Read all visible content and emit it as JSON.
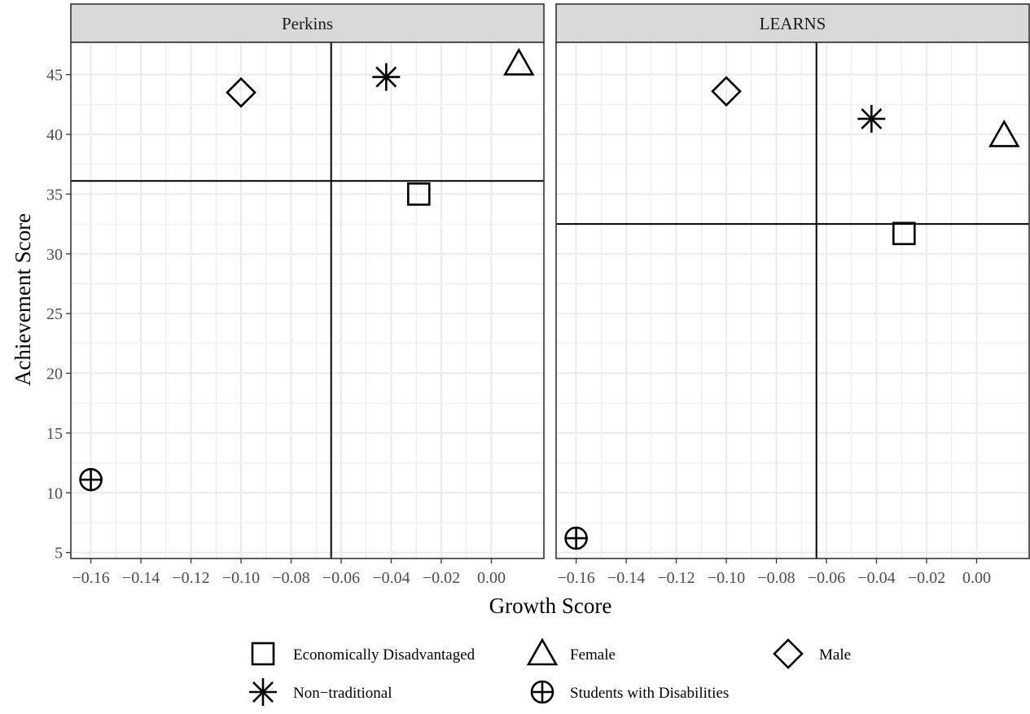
{
  "chart_data": {
    "type": "scatter",
    "facets": [
      {
        "name": "Perkins",
        "vline": -0.064,
        "hline": 36.1,
        "points": [
          {
            "group": "Economically Disadvantaged",
            "x": -0.029,
            "y": 35.0
          },
          {
            "group": "Female",
            "x": 0.011,
            "y": 45.9
          },
          {
            "group": "Male",
            "x": -0.1,
            "y": 43.5
          },
          {
            "group": "Non−traditional",
            "x": -0.042,
            "y": 44.8
          },
          {
            "group": "Students with Disabilities",
            "x": -0.16,
            "y": 11.1
          }
        ]
      },
      {
        "name": "LEARNS",
        "vline": -0.064,
        "hline": 32.5,
        "points": [
          {
            "group": "Economically Disadvantaged",
            "x": -0.029,
            "y": 31.7
          },
          {
            "group": "Female",
            "x": 0.011,
            "y": 39.9
          },
          {
            "group": "Male",
            "x": -0.1,
            "y": 43.6
          },
          {
            "group": "Non−traditional",
            "x": -0.042,
            "y": 41.3
          },
          {
            "group": "Students with Disabilities",
            "x": -0.16,
            "y": 6.2
          }
        ]
      }
    ],
    "xlabel": "Growth Score",
    "ylabel": "Achievement Score",
    "xlim": [
      -0.168,
      0.021
    ],
    "ylim": [
      4.5,
      47.7
    ],
    "xticks": [
      -0.16,
      -0.14,
      -0.12,
      -0.1,
      -0.08,
      -0.06,
      -0.04,
      -0.02,
      0.0
    ],
    "xtick_labels": [
      "−0.16",
      "−0.14",
      "−0.12",
      "−0.10",
      "−0.08",
      "−0.06",
      "−0.04",
      "−0.02",
      "0.00"
    ],
    "yticks": [
      5,
      10,
      15,
      20,
      25,
      30,
      35,
      40,
      45
    ],
    "ytick_labels": [
      "5",
      "10",
      "15",
      "20",
      "25",
      "30",
      "35",
      "40",
      "45"
    ],
    "grid": true,
    "legend_position": "bottom",
    "legend": [
      {
        "label": "Economically Disadvantaged",
        "shape": "square"
      },
      {
        "label": "Female",
        "shape": "triangle"
      },
      {
        "label": "Male",
        "shape": "diamond"
      },
      {
        "label": "Non−traditional",
        "shape": "asterisk"
      },
      {
        "label": "Students with Disabilities",
        "shape": "circle-plus"
      }
    ]
  }
}
